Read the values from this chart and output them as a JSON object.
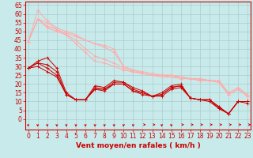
{
  "xlabel": "Vent moyen/en rafales ( km/h )",
  "bg_color": "#c8eaea",
  "grid_color": "#aacccc",
  "x_ticks": [
    0,
    1,
    2,
    3,
    4,
    5,
    6,
    7,
    8,
    9,
    10,
    11,
    12,
    13,
    14,
    15,
    16,
    17,
    18,
    19,
    20,
    21,
    22,
    23
  ],
  "y_ticks": [
    0,
    5,
    10,
    15,
    20,
    25,
    30,
    35,
    40,
    45,
    50,
    55,
    60,
    65
  ],
  "ylim": [
    -6,
    67
  ],
  "xlim": [
    -0.3,
    23.3
  ],
  "lines_light": [
    [
      44,
      62,
      56,
      52,
      50,
      48,
      45,
      43,
      42,
      40,
      30,
      28,
      27,
      26,
      25,
      25,
      24,
      23,
      23,
      22,
      22,
      15,
      18,
      14
    ],
    [
      44,
      57,
      55,
      51,
      49,
      47,
      45,
      43,
      41,
      38,
      30,
      28,
      26,
      25,
      24,
      24,
      23,
      23,
      22,
      22,
      21,
      14,
      17,
      13
    ],
    [
      44,
      57,
      53,
      51,
      48,
      45,
      40,
      36,
      34,
      32,
      29,
      27,
      26,
      25,
      25,
      25,
      24,
      23,
      23,
      22,
      21,
      14,
      17,
      13
    ],
    [
      44,
      57,
      52,
      50,
      48,
      43,
      38,
      33,
      32,
      30,
      28,
      27,
      26,
      25,
      25,
      24,
      24,
      23,
      22,
      22,
      21,
      14,
      17,
      13
    ]
  ],
  "lines_dark": [
    [
      29,
      33,
      35,
      29,
      15,
      11,
      11,
      19,
      18,
      22,
      21,
      18,
      16,
      13,
      15,
      19,
      20,
      12,
      11,
      11,
      7,
      3,
      10,
      9
    ],
    [
      29,
      32,
      31,
      27,
      14,
      11,
      11,
      18,
      17,
      21,
      21,
      17,
      15,
      13,
      14,
      18,
      19,
      12,
      11,
      11,
      7,
      3,
      10,
      10
    ],
    [
      29,
      32,
      29,
      25,
      14,
      11,
      11,
      17,
      17,
      20,
      20,
      16,
      15,
      13,
      14,
      18,
      19,
      12,
      11,
      11,
      6,
      3,
      10,
      10
    ],
    [
      29,
      30,
      27,
      24,
      14,
      11,
      11,
      17,
      16,
      20,
      20,
      16,
      14,
      13,
      13,
      17,
      18,
      12,
      11,
      10,
      6,
      3,
      10,
      10
    ]
  ],
  "light_color": "#ffaaaa",
  "dark_color": "#cc0000",
  "xlabel_color": "#cc0000",
  "xlabel_fontsize": 6.5,
  "tick_color": "#cc0000",
  "tick_fontsize": 5.5,
  "axis_color": "#cc0000",
  "arrow_dirs": [
    "d",
    "d",
    "d",
    "d",
    "d",
    "d",
    "d",
    "d",
    "d",
    "d",
    "d",
    "d",
    "r",
    "r",
    "d",
    "d",
    "r",
    "r",
    "r",
    "r",
    "r",
    "r",
    "r",
    "r"
  ]
}
